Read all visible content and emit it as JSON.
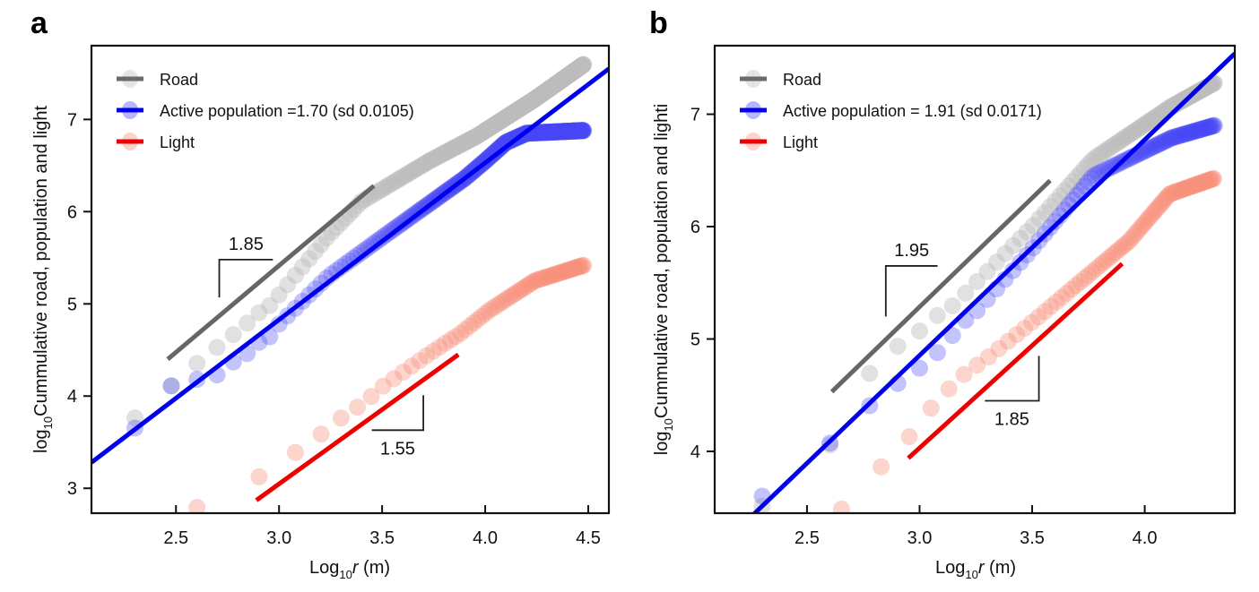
{
  "chart_data": [
    {
      "panel_label": "a",
      "type": "scatter",
      "title": "",
      "xlabel": "Log10 r (m)",
      "xlabel_parts": {
        "base": "Log",
        "sub": "10",
        "var": "r",
        "unit": " (m)"
      },
      "ylabel": "log10 Cummulative road, population and light",
      "ylabel_parts": {
        "base": "log",
        "sub": "10",
        "rest": "Cummulative road, population and light"
      },
      "xlim": [
        2.09,
        4.6
      ],
      "ylim": [
        2.73,
        7.8
      ],
      "xticks": [
        2.5,
        3.0,
        3.5,
        4.0,
        4.5
      ],
      "xtick_labels": [
        "2.5",
        "3.0",
        "3.5",
        "4.0",
        "4.5"
      ],
      "yticks": [
        3,
        4,
        5,
        6,
        7
      ],
      "ytick_labels": [
        "3",
        "4",
        "5",
        "6",
        "7"
      ],
      "grid": false,
      "legend_position": "top-left",
      "legend": [
        {
          "label": "Road",
          "series": "road"
        },
        {
          "label": "Active population =1.70 (sd 0.0105)",
          "series": "population"
        },
        {
          "label": "Light",
          "series": "light"
        }
      ],
      "series": [
        {
          "name": "Road",
          "key": "road",
          "point_color": "#bdbdbd",
          "line_color": "#6b6b6b",
          "sampling": {
            "r_step_m": 100,
            "k_start": 2,
            "k_end": 300
          },
          "curve": [
            [
              2.3,
              3.76
            ],
            [
              2.6,
              4.35
            ],
            [
              2.7,
              4.53
            ],
            [
              2.78,
              4.67
            ],
            [
              2.84,
              4.78
            ],
            [
              2.9,
              4.9
            ],
            [
              2.96,
              4.99
            ],
            [
              3.24,
              5.74
            ],
            [
              3.4,
              6.11
            ],
            [
              3.73,
              6.55
            ],
            [
              3.96,
              6.82
            ],
            [
              4.24,
              7.22
            ],
            [
              4.48,
              7.6
            ]
          ]
        },
        {
          "name": "Active population",
          "key": "population",
          "point_color": "#4848f5",
          "line_color": "#0000ee",
          "sampling": {
            "r_step_m": 100,
            "k_start": 2,
            "k_end": 300
          },
          "curve": [
            [
              2.3,
              3.65
            ],
            [
              2.48,
              4.12
            ],
            [
              2.52,
              4.15
            ],
            [
              2.6,
              4.18
            ],
            [
              2.7,
              4.23
            ],
            [
              2.74,
              4.32
            ],
            [
              2.84,
              4.45
            ],
            [
              2.9,
              4.58
            ],
            [
              2.95,
              4.63
            ],
            [
              3.0,
              4.78
            ],
            [
              3.24,
              5.3
            ],
            [
              3.5,
              5.72
            ],
            [
              3.75,
              6.12
            ],
            [
              3.9,
              6.36
            ],
            [
              4.0,
              6.55
            ],
            [
              4.1,
              6.75
            ],
            [
              4.2,
              6.85
            ],
            [
              4.48,
              6.88
            ]
          ]
        },
        {
          "name": "Light",
          "key": "light",
          "point_color": "#f8907c",
          "line_color": "#ee0000",
          "sampling": {
            "r_step_m": 400,
            "k_start": 1,
            "k_end": 75
          },
          "curve": [
            [
              2.6,
              2.79
            ],
            [
              2.9,
              3.12
            ],
            [
              3.08,
              3.39
            ],
            [
              3.2,
              3.58
            ],
            [
              3.3,
              3.76
            ],
            [
              3.38,
              3.88
            ],
            [
              3.45,
              4.0
            ],
            [
              3.5,
              4.1
            ],
            [
              3.73,
              4.46
            ],
            [
              3.88,
              4.68
            ],
            [
              4.02,
              4.93
            ],
            [
              4.24,
              5.25
            ],
            [
              4.48,
              5.42
            ]
          ]
        }
      ],
      "fit_lines": [
        {
          "key": "population",
          "slope": 1.7,
          "from": [
            2.09,
            3.28
          ],
          "to": [
            4.6,
            7.55
          ],
          "color": "#0000ee"
        },
        {
          "key": "road",
          "slope": 1.85,
          "from": [
            2.46,
            4.4
          ],
          "to": [
            3.46,
            6.28
          ],
          "color": "#666666"
        },
        {
          "key": "light",
          "slope": 1.55,
          "from": [
            2.89,
            2.87
          ],
          "to": [
            3.87,
            4.45
          ],
          "color": "#ee0000"
        }
      ],
      "annotations": [
        {
          "text": "1.85",
          "type": "slope-bracket",
          "corner": "top-left",
          "corner_at": [
            2.71,
            5.48
          ],
          "h_to": 2.97,
          "v_to": 5.07
        },
        {
          "text": "1.55",
          "type": "slope-bracket",
          "corner": "bottom-right",
          "corner_at": [
            3.7,
            3.63
          ],
          "h_to": 3.45,
          "v_to": 4.01
        }
      ]
    },
    {
      "panel_label": "b",
      "type": "scatter",
      "title": "",
      "xlabel": "Log10 r (m)",
      "xlabel_parts": {
        "base": "Log",
        "sub": "10",
        "var": "r",
        "unit": " (m)"
      },
      "ylabel": "log10 Cummulative road, population and lighti",
      "ylabel_parts": {
        "base": "log",
        "sub": "10",
        "rest": "Cummulative road, population and lighti"
      },
      "xlim": [
        2.09,
        4.4
      ],
      "ylim": [
        3.45,
        7.61
      ],
      "xticks": [
        2.5,
        3.0,
        3.5,
        4.0
      ],
      "xtick_labels": [
        "2.5",
        "3.0",
        "3.5",
        "4.0"
      ],
      "yticks": [
        4,
        5,
        6,
        7
      ],
      "ytick_labels": [
        "4",
        "5",
        "6",
        "7"
      ],
      "grid": false,
      "legend_position": "top-left",
      "legend": [
        {
          "label": "Road",
          "series": "road"
        },
        {
          "label": "Active population = 1.91 (sd 0.0171)",
          "series": "population"
        },
        {
          "label": "Light",
          "series": "light"
        }
      ],
      "series": [
        {
          "name": "Road",
          "key": "road",
          "point_color": "#bdbdbd",
          "line_color": "#6b6b6b",
          "sampling": {
            "r_step_m": 200,
            "k_start": 1,
            "k_end": 102
          },
          "curve": [
            [
              2.3,
              3.51
            ],
            [
              2.6,
              4.05
            ],
            [
              2.78,
              4.7
            ],
            [
              2.9,
              4.93
            ],
            [
              3.0,
              5.07
            ],
            [
              3.08,
              5.21
            ],
            [
              3.15,
              5.3
            ],
            [
              3.5,
              6.0
            ],
            [
              3.77,
              6.6
            ],
            [
              4.12,
              7.07
            ],
            [
              4.31,
              7.28
            ]
          ]
        },
        {
          "name": "Active population",
          "key": "population",
          "point_color": "#4848f5",
          "line_color": "#0000ee",
          "sampling": {
            "r_step_m": 200,
            "k_start": 1,
            "k_end": 102
          },
          "curve": [
            [
              2.3,
              3.6
            ],
            [
              2.6,
              4.07
            ],
            [
              2.78,
              4.41
            ],
            [
              2.9,
              4.6
            ],
            [
              3.0,
              4.74
            ],
            [
              3.08,
              4.88
            ],
            [
              3.15,
              5.04
            ],
            [
              3.2,
              5.16
            ],
            [
              3.26,
              5.26
            ],
            [
              3.5,
              5.8
            ],
            [
              3.77,
              6.45
            ],
            [
              4.12,
              6.79
            ],
            [
              4.31,
              6.9
            ]
          ]
        },
        {
          "name": "Light",
          "key": "light",
          "point_color": "#f8907c",
          "line_color": "#ee0000",
          "sampling": {
            "r_step_m": 225,
            "k_start": 2,
            "k_end": 90
          },
          "curve": [
            [
              2.65,
              3.48
            ],
            [
              2.95,
              4.12
            ],
            [
              3.08,
              4.46
            ],
            [
              3.2,
              4.69
            ],
            [
              3.3,
              4.83
            ],
            [
              3.5,
              5.15
            ],
            [
              3.93,
              5.87
            ],
            [
              4.11,
              6.29
            ],
            [
              4.31,
              6.43
            ]
          ]
        }
      ],
      "fit_lines": [
        {
          "key": "population",
          "slope": 1.91,
          "from": [
            2.19,
            3.3
          ],
          "to": [
            4.4,
            7.54
          ],
          "color": "#0000ee"
        },
        {
          "key": "road",
          "slope": 1.95,
          "from": [
            2.61,
            4.53
          ],
          "to": [
            3.58,
            6.41
          ],
          "color": "#666666"
        },
        {
          "key": "light",
          "slope": 1.85,
          "from": [
            2.95,
            3.94
          ],
          "to": [
            3.9,
            5.67
          ],
          "color": "#ee0000"
        }
      ],
      "annotations": [
        {
          "text": "1.95",
          "type": "slope-bracket",
          "corner": "top-left",
          "corner_at": [
            2.85,
            5.65
          ],
          "h_to": 3.08,
          "v_to": 5.2
        },
        {
          "text": "1.85",
          "type": "slope-bracket",
          "corner": "bottom-right",
          "corner_at": [
            3.53,
            4.45
          ],
          "h_to": 3.29,
          "v_to": 4.85
        }
      ]
    }
  ]
}
